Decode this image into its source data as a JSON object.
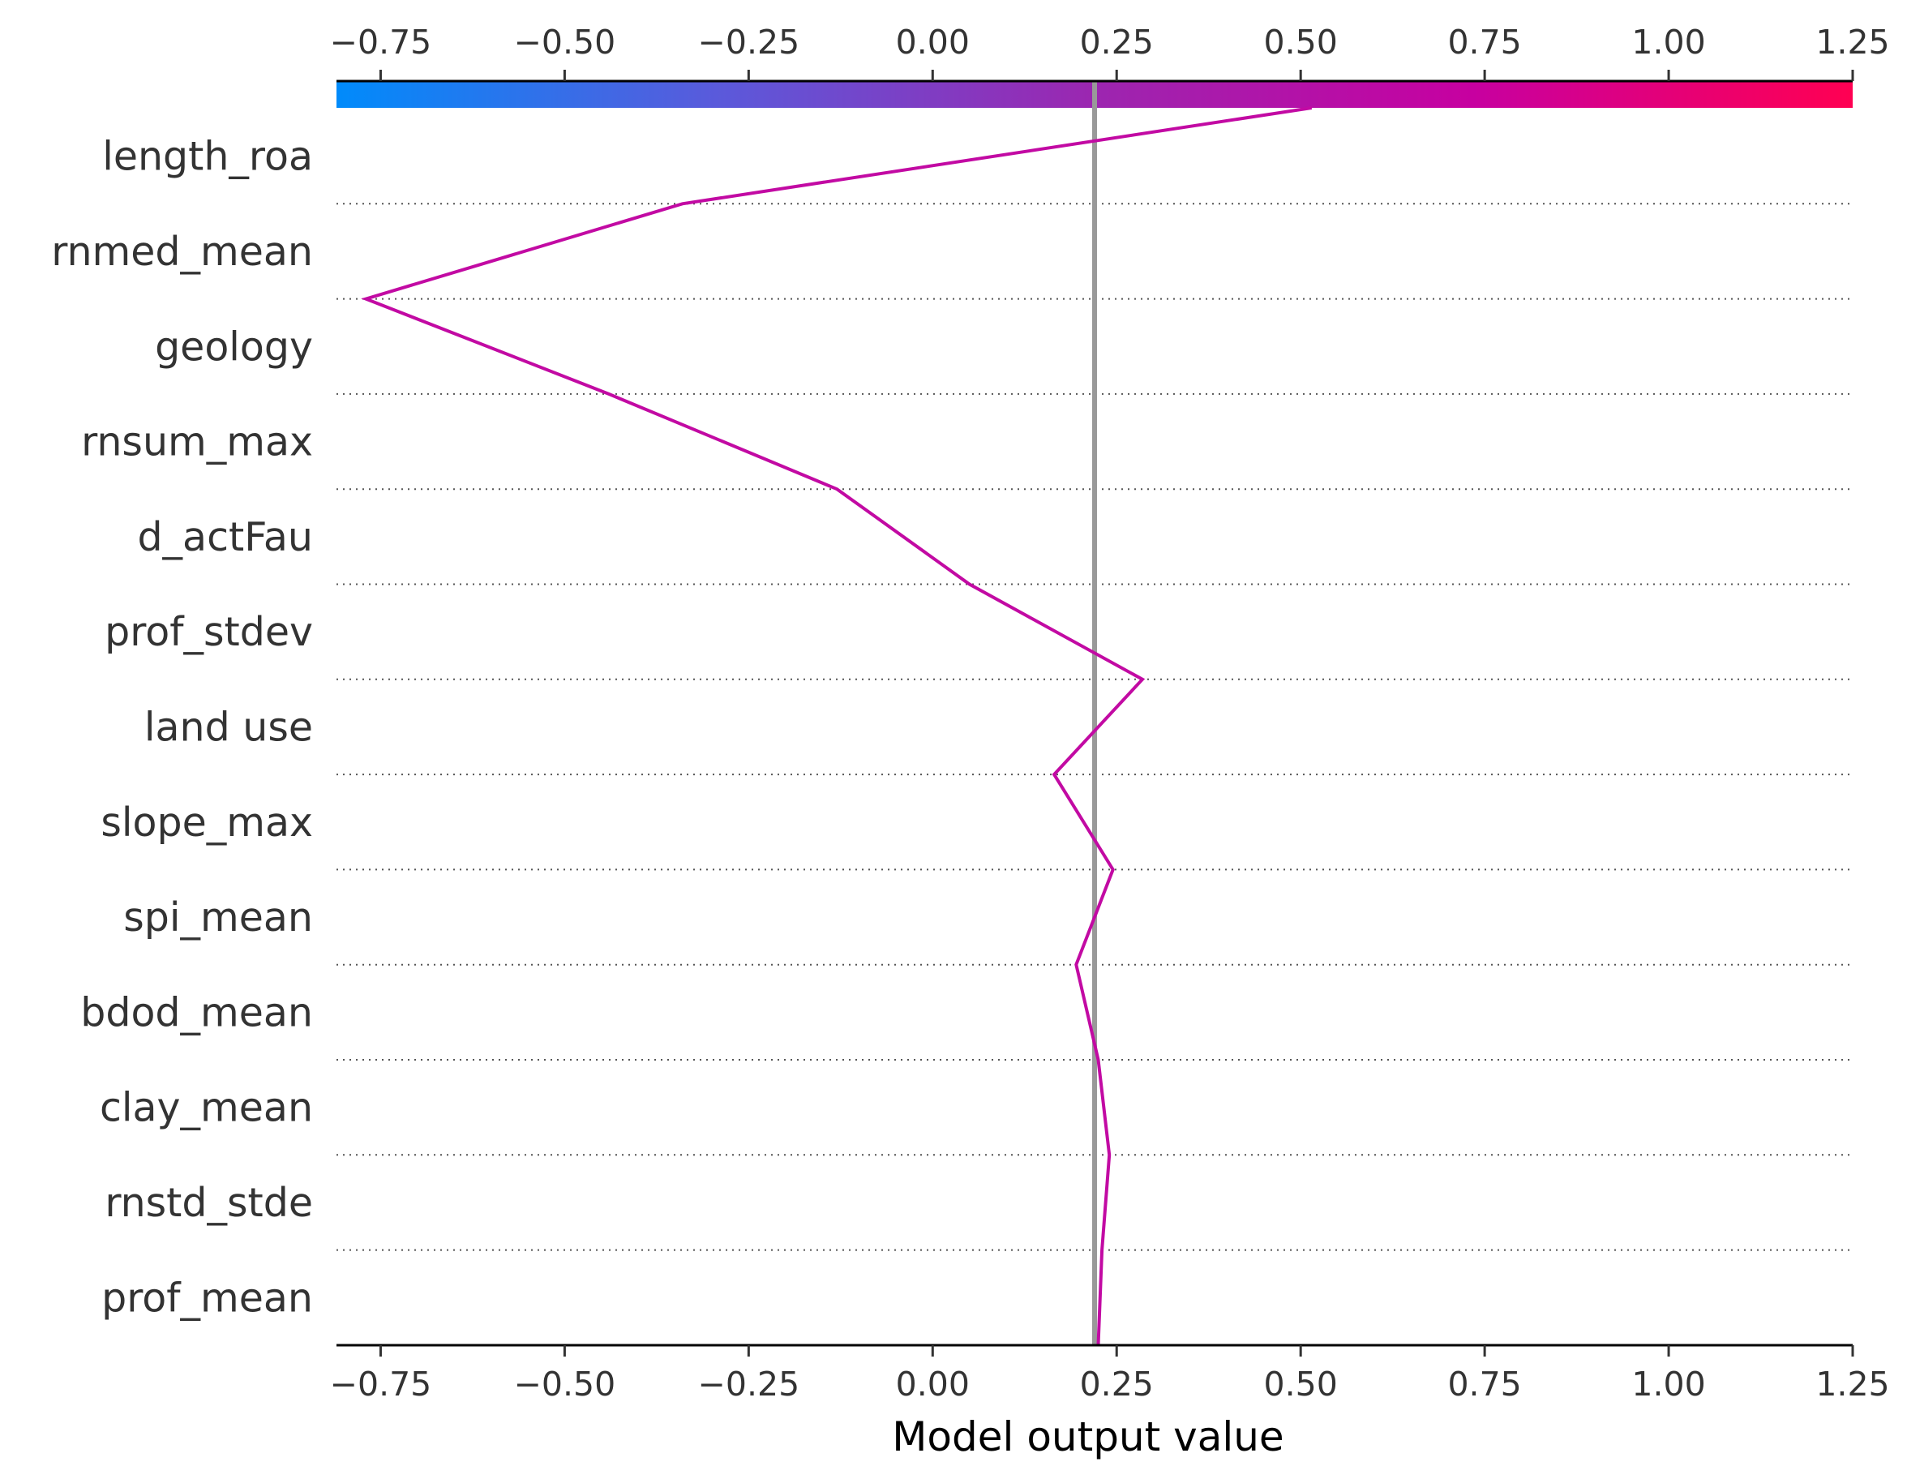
{
  "chart_data": {
    "type": "line",
    "subtype": "shap-decision-plot",
    "title": "",
    "xlabel": "Model output value",
    "ylabel": "",
    "xlim": [
      -0.81,
      1.25
    ],
    "xticks": [
      -0.75,
      -0.5,
      -0.25,
      0.0,
      0.25,
      0.5,
      0.75,
      1.0,
      1.25
    ],
    "xtick_labels": [
      "−0.75",
      "−0.50",
      "−0.25",
      "0.00",
      "0.25",
      "0.50",
      "0.75",
      "1.00",
      "1.25"
    ],
    "top_axis_duplicate": true,
    "base_value": 0.22,
    "grid": "dotted horizontal lines at feature boundaries",
    "colorbar": {
      "position": "top",
      "range": [
        -0.81,
        1.25
      ],
      "colors": [
        "#008bfb",
        "#5a5adb",
        "#9c26b0",
        "#c700a0",
        "#ff0052"
      ]
    },
    "features": [
      "length_roa",
      "rnmed_mean",
      "geology",
      "rnsum_max",
      "d_actFau",
      "prof_stdev",
      "land use",
      "slope_max",
      "spi_mean",
      "bdod_mean",
      "clay_mean",
      "rnstd_stde",
      "prof_mean"
    ],
    "series": [
      {
        "color": "#c20aa3",
        "path_values": [
          0.515,
          -0.34,
          -0.77,
          -0.44,
          -0.13,
          0.05,
          0.285,
          0.165,
          0.245,
          0.195,
          0.225,
          0.24,
          0.23,
          0.225
        ]
      }
    ]
  }
}
